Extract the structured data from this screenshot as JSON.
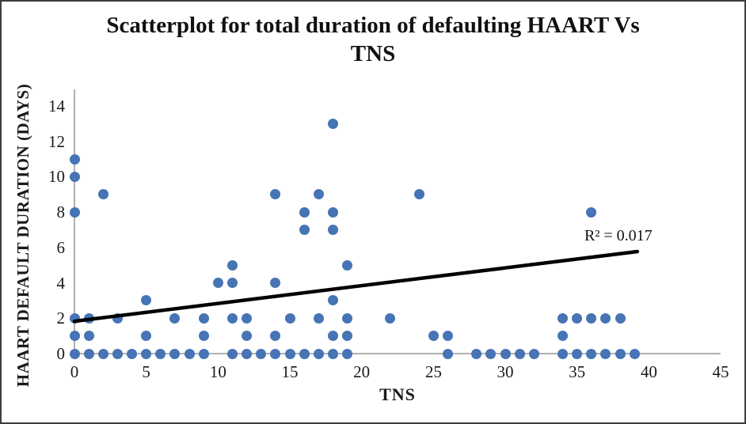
{
  "title": {
    "line1": "Scatterplot for total duration of defaulting HAART Vs",
    "line2": "TNS"
  },
  "chart_data": {
    "type": "scatter",
    "title": "Scatterplot for total duration of defaulting HAART Vs TNS",
    "xlabel": "TNS",
    "ylabel": "HAART DEFAULT DURATION (DAYS)",
    "xlim": [
      0,
      45
    ],
    "ylim": [
      0,
      14
    ],
    "x_ticks": [
      0,
      5,
      10,
      15,
      20,
      25,
      30,
      35,
      40,
      45
    ],
    "y_ticks": [
      0,
      2,
      4,
      6,
      8,
      10,
      12,
      14
    ],
    "grid": false,
    "legend": false,
    "annotation": "R² = 0.017",
    "r_squared": 0.017,
    "point_color": "#4674b4",
    "trendline_color": "#000000",
    "trendline": {
      "x_start": 0,
      "y_start": 1.83,
      "x_end": 39.2,
      "y_end": 5.77
    },
    "points": [
      [
        0,
        0
      ],
      [
        0,
        1
      ],
      [
        0,
        2
      ],
      [
        0,
        8
      ],
      [
        0,
        10
      ],
      [
        0,
        11
      ],
      [
        1,
        0
      ],
      [
        1,
        1
      ],
      [
        1,
        2
      ],
      [
        2,
        0
      ],
      [
        2,
        9
      ],
      [
        3,
        0
      ],
      [
        3,
        2
      ],
      [
        4,
        0
      ],
      [
        5,
        0
      ],
      [
        5,
        1
      ],
      [
        5,
        3
      ],
      [
        6,
        0
      ],
      [
        7,
        0
      ],
      [
        7,
        2
      ],
      [
        8,
        0
      ],
      [
        9,
        0
      ],
      [
        9,
        1
      ],
      [
        9,
        2
      ],
      [
        10,
        4
      ],
      [
        11,
        0
      ],
      [
        11,
        2
      ],
      [
        11,
        4
      ],
      [
        11,
        5
      ],
      [
        12,
        0
      ],
      [
        12,
        1
      ],
      [
        12,
        2
      ],
      [
        13,
        0
      ],
      [
        14,
        0
      ],
      [
        14,
        1
      ],
      [
        14,
        4
      ],
      [
        14,
        9
      ],
      [
        15,
        0
      ],
      [
        15,
        2
      ],
      [
        16,
        0
      ],
      [
        16,
        7
      ],
      [
        16,
        8
      ],
      [
        17,
        0
      ],
      [
        17,
        2
      ],
      [
        17,
        9
      ],
      [
        18,
        0
      ],
      [
        18,
        1
      ],
      [
        18,
        3
      ],
      [
        18,
        7
      ],
      [
        18,
        8
      ],
      [
        18,
        13
      ],
      [
        19,
        0
      ],
      [
        19,
        1
      ],
      [
        19,
        2
      ],
      [
        19,
        5
      ],
      [
        22,
        2
      ],
      [
        24,
        9
      ],
      [
        25,
        1
      ],
      [
        26,
        0
      ],
      [
        26,
        1
      ],
      [
        28,
        0
      ],
      [
        29,
        0
      ],
      [
        30,
        0
      ],
      [
        31,
        0
      ],
      [
        32,
        0
      ],
      [
        34,
        0
      ],
      [
        34,
        1
      ],
      [
        34,
        2
      ],
      [
        35,
        0
      ],
      [
        35,
        2
      ],
      [
        36,
        0
      ],
      [
        36,
        2
      ],
      [
        36,
        8
      ],
      [
        37,
        0
      ],
      [
        37,
        2
      ],
      [
        38,
        0
      ],
      [
        38,
        2
      ],
      [
        39,
        0
      ]
    ]
  }
}
